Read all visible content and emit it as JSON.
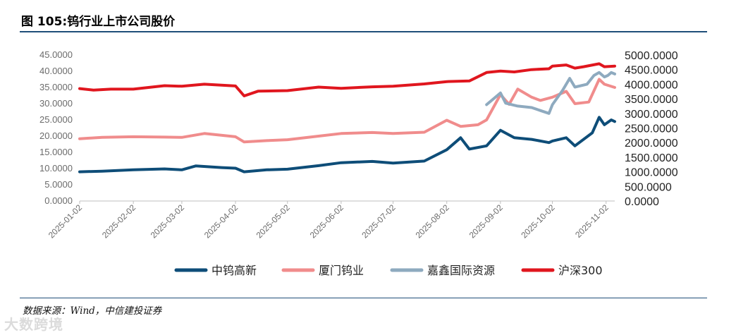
{
  "figure_title": "图 105:钨行业上市公司股价",
  "source_note": "数据来源：Wind，中信建投证券",
  "watermark": "大数跨境",
  "chart_data": {
    "type": "line",
    "title": "",
    "xlabel": "",
    "ylabel": "",
    "x_tick_labels": [
      "2025-01-02",
      "2025-02-02",
      "2025-03-02",
      "2025-04-02",
      "2025-05-02",
      "2025-06-02",
      "2025-07-02",
      "2025-08-02",
      "2025-09-02",
      "2025-10-02",
      "2025-11-02"
    ],
    "x_range": [
      "2025-01-02",
      "2025-11-07"
    ],
    "y_left": {
      "ylim": [
        0,
        45
      ],
      "ticks": [
        "0.0000",
        "5.0000",
        "10.0000",
        "15.0000",
        "20.0000",
        "25.0000",
        "30.0000",
        "35.0000",
        "40.0000",
        "45.0000"
      ]
    },
    "y_right": {
      "ylim": [
        0,
        5000
      ],
      "ticks": [
        "0.0000",
        "500.0000",
        "1000.0000",
        "1500.0000",
        "2000.0000",
        "2500.0000",
        "3000.0000",
        "3500.0000",
        "4000.0000",
        "4500.0000",
        "5000.0000"
      ]
    },
    "grid": false,
    "legend_position": "bottom",
    "series": [
      {
        "name": "中钨高新",
        "axis": "left",
        "color": "#0e4d78",
        "points": [
          [
            "2025-01-02",
            9.0
          ],
          [
            "2025-01-15",
            9.2
          ],
          [
            "2025-02-02",
            9.6
          ],
          [
            "2025-02-20",
            9.9
          ],
          [
            "2025-03-02",
            9.6
          ],
          [
            "2025-03-10",
            10.8
          ],
          [
            "2025-03-25",
            10.3
          ],
          [
            "2025-04-02",
            10.1
          ],
          [
            "2025-04-07",
            9.0
          ],
          [
            "2025-04-20",
            9.6
          ],
          [
            "2025-05-02",
            9.8
          ],
          [
            "2025-05-20",
            10.9
          ],
          [
            "2025-06-02",
            11.8
          ],
          [
            "2025-06-20",
            12.2
          ],
          [
            "2025-07-02",
            11.7
          ],
          [
            "2025-07-20",
            12.3
          ],
          [
            "2025-08-02",
            15.8
          ],
          [
            "2025-08-10",
            19.5
          ],
          [
            "2025-08-15",
            16.0
          ],
          [
            "2025-08-25",
            17.0
          ],
          [
            "2025-09-02",
            21.8
          ],
          [
            "2025-09-10",
            19.5
          ],
          [
            "2025-09-20",
            19.0
          ],
          [
            "2025-09-30",
            18.0
          ],
          [
            "2025-10-02",
            18.5
          ],
          [
            "2025-10-10",
            19.5
          ],
          [
            "2025-10-15",
            17.0
          ],
          [
            "2025-10-25",
            21.0
          ],
          [
            "2025-10-29",
            25.8
          ],
          [
            "2025-11-01",
            23.5
          ],
          [
            "2025-11-05",
            25.0
          ],
          [
            "2025-11-07",
            24.5
          ]
        ]
      },
      {
        "name": "厦门钨业",
        "axis": "left",
        "color": "#f08c8c",
        "points": [
          [
            "2025-01-02",
            19.2
          ],
          [
            "2025-01-15",
            19.6
          ],
          [
            "2025-02-02",
            19.8
          ],
          [
            "2025-02-20",
            19.7
          ],
          [
            "2025-03-02",
            19.6
          ],
          [
            "2025-03-15",
            20.8
          ],
          [
            "2025-04-02",
            19.8
          ],
          [
            "2025-04-07",
            18.2
          ],
          [
            "2025-04-20",
            18.6
          ],
          [
            "2025-05-02",
            18.9
          ],
          [
            "2025-05-20",
            20.0
          ],
          [
            "2025-06-02",
            20.8
          ],
          [
            "2025-06-20",
            21.1
          ],
          [
            "2025-07-02",
            20.8
          ],
          [
            "2025-07-20",
            21.2
          ],
          [
            "2025-08-02",
            24.9
          ],
          [
            "2025-08-10",
            23.0
          ],
          [
            "2025-08-20",
            23.5
          ],
          [
            "2025-08-25",
            25.0
          ],
          [
            "2025-09-02",
            32.8
          ],
          [
            "2025-09-07",
            29.8
          ],
          [
            "2025-09-12",
            34.5
          ],
          [
            "2025-09-20",
            32.0
          ],
          [
            "2025-09-25",
            31.0
          ],
          [
            "2025-10-02",
            32.0
          ],
          [
            "2025-10-10",
            33.8
          ],
          [
            "2025-10-15",
            30.0
          ],
          [
            "2025-10-23",
            30.5
          ],
          [
            "2025-10-29",
            37.5
          ],
          [
            "2025-11-01",
            36.0
          ],
          [
            "2025-11-07",
            35.0
          ]
        ]
      },
      {
        "name": "嘉鑫国际资源",
        "axis": "right",
        "color": "#8eaabf",
        "points": [
          [
            "2025-08-25",
            3300
          ],
          [
            "2025-09-02",
            3700
          ],
          [
            "2025-09-05",
            3350
          ],
          [
            "2025-09-12",
            3250
          ],
          [
            "2025-09-20",
            3200
          ],
          [
            "2025-09-25",
            3100
          ],
          [
            "2025-09-30",
            3000
          ],
          [
            "2025-10-02",
            3300
          ],
          [
            "2025-10-08",
            3800
          ],
          [
            "2025-10-12",
            4200
          ],
          [
            "2025-10-15",
            3900
          ],
          [
            "2025-10-22",
            4000
          ],
          [
            "2025-10-26",
            4300
          ],
          [
            "2025-10-29",
            4400
          ],
          [
            "2025-11-01",
            4250
          ],
          [
            "2025-11-03",
            4300
          ],
          [
            "2025-11-05",
            4400
          ],
          [
            "2025-11-07",
            4350
          ]
        ]
      },
      {
        "name": "沪深300",
        "axis": "right",
        "color": "#e0161e",
        "points": [
          [
            "2025-01-02",
            3850
          ],
          [
            "2025-01-10",
            3800
          ],
          [
            "2025-01-20",
            3830
          ],
          [
            "2025-02-02",
            3830
          ],
          [
            "2025-02-20",
            3950
          ],
          [
            "2025-03-02",
            3930
          ],
          [
            "2025-03-15",
            4000
          ],
          [
            "2025-04-02",
            3940
          ],
          [
            "2025-04-07",
            3600
          ],
          [
            "2025-04-15",
            3760
          ],
          [
            "2025-05-02",
            3780
          ],
          [
            "2025-05-20",
            3900
          ],
          [
            "2025-06-02",
            3860
          ],
          [
            "2025-06-20",
            3910
          ],
          [
            "2025-07-02",
            3930
          ],
          [
            "2025-07-20",
            4010
          ],
          [
            "2025-08-02",
            4090
          ],
          [
            "2025-08-15",
            4110
          ],
          [
            "2025-08-25",
            4400
          ],
          [
            "2025-09-02",
            4450
          ],
          [
            "2025-09-10",
            4420
          ],
          [
            "2025-09-20",
            4500
          ],
          [
            "2025-09-30",
            4530
          ],
          [
            "2025-10-02",
            4620
          ],
          [
            "2025-10-10",
            4660
          ],
          [
            "2025-10-15",
            4550
          ],
          [
            "2025-10-20",
            4600
          ],
          [
            "2025-10-29",
            4700
          ],
          [
            "2025-11-01",
            4600
          ],
          [
            "2025-11-07",
            4620
          ]
        ]
      }
    ]
  }
}
